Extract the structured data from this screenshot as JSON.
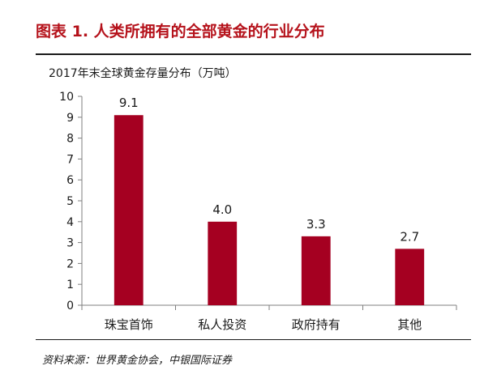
{
  "figure": {
    "title": "图表 1. 人类所拥有的全部黄金的行业分布",
    "source": "资料来源：世界黄金协会，中银国际证券"
  },
  "chart_data": {
    "type": "bar",
    "title": "2017年末全球黄金存量分布（万吨）",
    "xlabel": "",
    "ylabel": "",
    "categories": [
      "珠宝首饰",
      "私人投资",
      "政府持有",
      "其他"
    ],
    "values": [
      9.1,
      4.0,
      3.3,
      2.7
    ],
    "value_labels": [
      "9.1",
      "4.0",
      "3.3",
      "2.7"
    ],
    "ylim": [
      0,
      10
    ],
    "yticks": [
      "0",
      "1",
      "2",
      "3",
      "4",
      "5",
      "6",
      "7",
      "8",
      "9",
      "10"
    ],
    "grid": false,
    "legend": "none",
    "bar_color": "#a50021"
  }
}
